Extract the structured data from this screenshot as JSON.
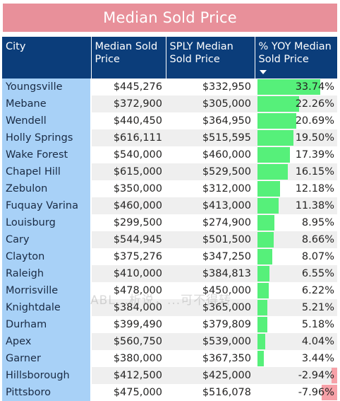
{
  "title": "Median Sold Price",
  "columns": {
    "city": "City",
    "median": "Median Sold Price",
    "sply": "SPLY Median Sold Price",
    "yoy": "% YOY Median Sold Price"
  },
  "watermark": "ABL...析说，...可不得转...",
  "colors": {
    "positive_bar": "#56f07a",
    "negative_bar": "#f6a1a8",
    "header_bg": "#0b3d7a",
    "city_bg": "#a8d1f7",
    "title_bg": "#e8909a"
  },
  "chart_data": {
    "type": "table",
    "rows": [
      {
        "city": "Youngsville",
        "median": "$445,276",
        "sply": "$332,950",
        "yoy_label": "33.74%",
        "yoy": 33.74
      },
      {
        "city": "Mebane",
        "median": "$372,900",
        "sply": "$305,000",
        "yoy_label": "22.26%",
        "yoy": 22.26
      },
      {
        "city": "Wendell",
        "median": "$440,450",
        "sply": "$364,950",
        "yoy_label": "20.69%",
        "yoy": 20.69
      },
      {
        "city": "Holly Springs",
        "median": "$616,111",
        "sply": "$515,595",
        "yoy_label": "19.50%",
        "yoy": 19.5
      },
      {
        "city": "Wake Forest",
        "median": "$540,000",
        "sply": "$460,000",
        "yoy_label": "17.39%",
        "yoy": 17.39
      },
      {
        "city": "Chapel Hill",
        "median": "$615,000",
        "sply": "$529,500",
        "yoy_label": "16.15%",
        "yoy": 16.15
      },
      {
        "city": "Zebulon",
        "median": "$350,000",
        "sply": "$312,000",
        "yoy_label": "12.18%",
        "yoy": 12.18
      },
      {
        "city": "Fuquay Varina",
        "median": "$460,000",
        "sply": "$413,000",
        "yoy_label": "11.38%",
        "yoy": 11.38
      },
      {
        "city": "Louisburg",
        "median": "$299,500",
        "sply": "$274,900",
        "yoy_label": "8.95%",
        "yoy": 8.95
      },
      {
        "city": "Cary",
        "median": "$544,945",
        "sply": "$501,500",
        "yoy_label": "8.66%",
        "yoy": 8.66
      },
      {
        "city": "Clayton",
        "median": "$375,276",
        "sply": "$347,250",
        "yoy_label": "8.07%",
        "yoy": 8.07
      },
      {
        "city": "Raleigh",
        "median": "$410,000",
        "sply": "$384,813",
        "yoy_label": "6.55%",
        "yoy": 6.55
      },
      {
        "city": "Morrisville",
        "median": "$478,000",
        "sply": "$450,000",
        "yoy_label": "6.22%",
        "yoy": 6.22
      },
      {
        "city": "Knightdale",
        "median": "$384,000",
        "sply": "$365,000",
        "yoy_label": "5.21%",
        "yoy": 5.21
      },
      {
        "city": "Durham",
        "median": "$399,490",
        "sply": "$379,809",
        "yoy_label": "5.18%",
        "yoy": 5.18
      },
      {
        "city": "Apex",
        "median": "$560,750",
        "sply": "$539,000",
        "yoy_label": "4.04%",
        "yoy": 4.04
      },
      {
        "city": "Garner",
        "median": "$380,000",
        "sply": "$367,350",
        "yoy_label": "3.44%",
        "yoy": 3.44
      },
      {
        "city": "Hillsborough",
        "median": "$412,500",
        "sply": "$425,000",
        "yoy_label": "-2.94%",
        "yoy": -2.94
      },
      {
        "city": "Pittsboro",
        "median": "$475,000",
        "sply": "$516,078",
        "yoy_label": "-7.96%",
        "yoy": -7.96
      }
    ],
    "sort": {
      "column": "yoy",
      "direction": "descending"
    }
  }
}
